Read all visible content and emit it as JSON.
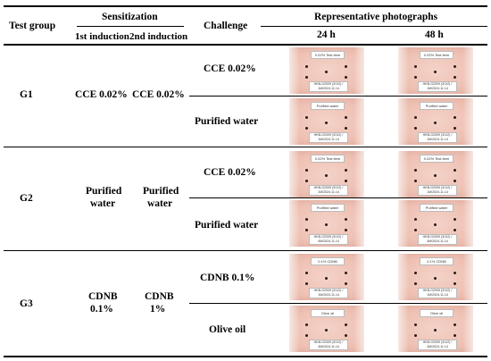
{
  "header": {
    "test_group": "Test group",
    "sensitization": "Sensitization",
    "first_induction": "1st induction",
    "second_induction": "2nd induction",
    "challenge": "Challenge",
    "representative": "Representative photographs",
    "h24": "24 h",
    "h48": "48 h"
  },
  "groups": [
    {
      "name": "G1",
      "first_induction": "CCE 0.02%",
      "second_induction": "CCE 0.02%",
      "challenges": [
        {
          "label": "CCE 0.02%",
          "photo_top": "0.02% Test item",
          "photo_bottom": "HKB-G2009 (3/1/2) / 1M/2024.11.14"
        },
        {
          "label": "Purified water",
          "photo_top": "Purified water",
          "photo_bottom": "HKB-G2009 (3/1/2) / 1M/2024.11.14"
        }
      ]
    },
    {
      "name": "G2",
      "first_induction_line1": "Purified",
      "first_induction_line2": "water",
      "second_induction_line1": "Purified",
      "second_induction_line2": "water",
      "challenges": [
        {
          "label": "CCE 0.02%",
          "photo_top": "0.02% Test item",
          "photo_bottom": "HKB-G2009 (3/1/2) / 1M/2024.11.14"
        },
        {
          "label": "Purified water",
          "photo_top": "Purified water",
          "photo_bottom": "HKB-G2009 (3/1/2) / 4M/2024.11.14"
        }
      ]
    },
    {
      "name": "G3",
      "first_induction_line1": "CDNB",
      "first_induction_line2": "0.1%",
      "second_induction_line1": "CDNB",
      "second_induction_line2": "1%",
      "challenges": [
        {
          "label": "CDNB 0.1%",
          "photo_top": "0.1% CDNB",
          "photo_bottom": "HKB-G2009 (3/1/2) / 1M/2024.11.14"
        },
        {
          "label": "Olive oil",
          "photo_top": "Olive oil",
          "photo_bottom": "HKB-G2009 (3/1/2) / 4M/2024.11.14"
        }
      ]
    }
  ]
}
